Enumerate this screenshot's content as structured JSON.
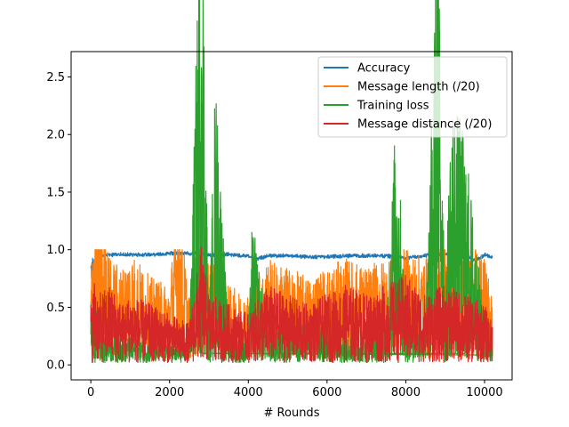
{
  "chart_data": {
    "type": "line",
    "title": "",
    "xlabel": "# Rounds",
    "ylabel": "",
    "xlim": [
      -500,
      10700
    ],
    "ylim": [
      -0.13,
      2.72
    ],
    "xticks": [
      0,
      2000,
      4000,
      6000,
      8000,
      10000
    ],
    "xtick_labels": [
      "0",
      "2000",
      "4000",
      "6000",
      "8000",
      "10000"
    ],
    "yticks": [
      0.0,
      0.5,
      1.0,
      1.5,
      2.0,
      2.5
    ],
    "ytick_labels": [
      "0.0",
      "0.5",
      "1.0",
      "1.5",
      "2.0",
      "2.5"
    ],
    "grid": false,
    "legend_position": "top-right",
    "x_range": [
      0,
      10200
    ],
    "series": [
      {
        "name": "Accuracy",
        "color": "#1f77b4",
        "x": [
          0,
          50,
          100,
          200,
          500,
          1000,
          1500,
          2000,
          2500,
          2800,
          3000,
          3500,
          4000,
          4200,
          4500,
          5000,
          5500,
          6000,
          6500,
          7000,
          7500,
          8000,
          8500,
          9000,
          9500,
          9800,
          10000,
          10200
        ],
        "y": [
          0.7,
          0.9,
          0.95,
          0.96,
          0.97,
          0.97,
          0.97,
          0.98,
          0.98,
          0.98,
          0.97,
          0.97,
          0.96,
          0.93,
          0.96,
          0.96,
          0.95,
          0.95,
          0.96,
          0.96,
          0.96,
          0.94,
          0.96,
          0.97,
          0.96,
          0.92,
          0.97,
          0.95
        ]
      },
      {
        "name": "Message length (/20)",
        "color": "#ff7f0e",
        "x": [
          0,
          100,
          200,
          300,
          500,
          800,
          1000,
          1500,
          2000,
          2200,
          2500,
          2800,
          3000,
          3500,
          4000,
          4500,
          5000,
          5500,
          6000,
          6500,
          7000,
          7500,
          8000,
          8500,
          9000,
          9500,
          10000,
          10200
        ],
        "y": [
          0.45,
          1.0,
          0.9,
          0.75,
          0.55,
          0.5,
          0.6,
          0.45,
          0.4,
          0.92,
          0.35,
          0.85,
          0.55,
          0.4,
          0.35,
          0.55,
          0.5,
          0.45,
          0.5,
          0.55,
          0.5,
          0.55,
          0.6,
          0.55,
          0.8,
          0.65,
          0.55,
          0.35
        ]
      },
      {
        "name": "Training loss",
        "color": "#2ca02c",
        "x": [
          0,
          500,
          1000,
          1500,
          2000,
          2500,
          2810,
          3000,
          3160,
          3500,
          4000,
          4100,
          4500,
          5000,
          5500,
          6000,
          6500,
          7000,
          7500,
          7760,
          8000,
          8500,
          8840,
          9000,
          9150,
          9500,
          10000,
          10200
        ],
        "y": [
          0.3,
          0.15,
          0.12,
          0.1,
          0.08,
          0.08,
          2.58,
          0.1,
          1.43,
          0.12,
          0.1,
          0.7,
          0.15,
          0.15,
          0.2,
          0.15,
          0.12,
          0.15,
          0.2,
          1.27,
          0.2,
          0.18,
          2.4,
          0.25,
          1.33,
          1.1,
          0.2,
          0.1
        ]
      },
      {
        "name": "Message distance (/20)",
        "color": "#d62728",
        "x": [
          0,
          100,
          200,
          500,
          800,
          1000,
          1500,
          2000,
          2500,
          2800,
          3000,
          3500,
          4000,
          4500,
          5000,
          5500,
          6000,
          6500,
          7000,
          7500,
          8000,
          8500,
          9000,
          9500,
          10000,
          10200
        ],
        "y": [
          0.3,
          0.45,
          0.35,
          0.4,
          0.3,
          0.35,
          0.3,
          0.25,
          0.2,
          0.6,
          0.35,
          0.3,
          0.25,
          0.4,
          0.35,
          0.3,
          0.35,
          0.4,
          0.35,
          0.4,
          0.45,
          0.35,
          0.4,
          0.35,
          0.3,
          0.2
        ]
      }
    ]
  }
}
